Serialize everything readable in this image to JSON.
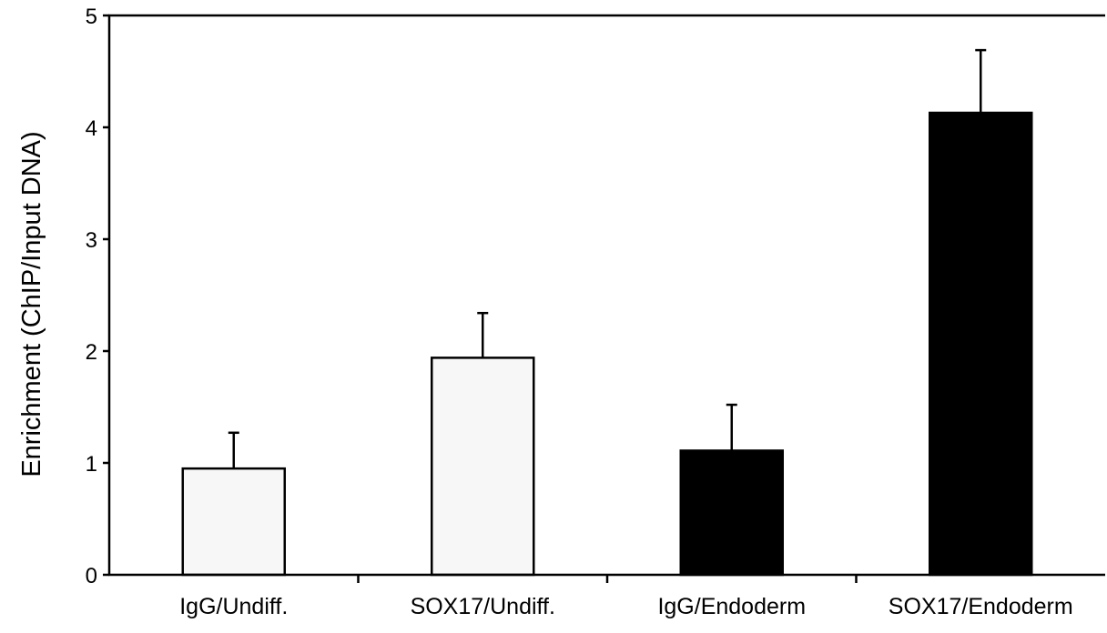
{
  "chart_data": {
    "type": "bar",
    "title": "",
    "xlabel": "",
    "ylabel": "Enrichment (ChIP/Input DNA)",
    "ylim": [
      0,
      5
    ],
    "yticks": [
      "0",
      "1",
      "2",
      "3",
      "4",
      "5"
    ],
    "grid": false,
    "legend": "none",
    "categories": [
      "IgG/Undiff.",
      "SOX17/Undiff.",
      "IgG/Endoderm",
      "SOX17/Endoderm"
    ],
    "values": [
      0.95,
      1.94,
      1.11,
      4.13
    ],
    "error_upper": [
      0.32,
      0.4,
      0.41,
      0.56
    ],
    "bar_colors": [
      "#f7f7f7",
      "#f7f7f7",
      "#000000",
      "#000000"
    ]
  }
}
